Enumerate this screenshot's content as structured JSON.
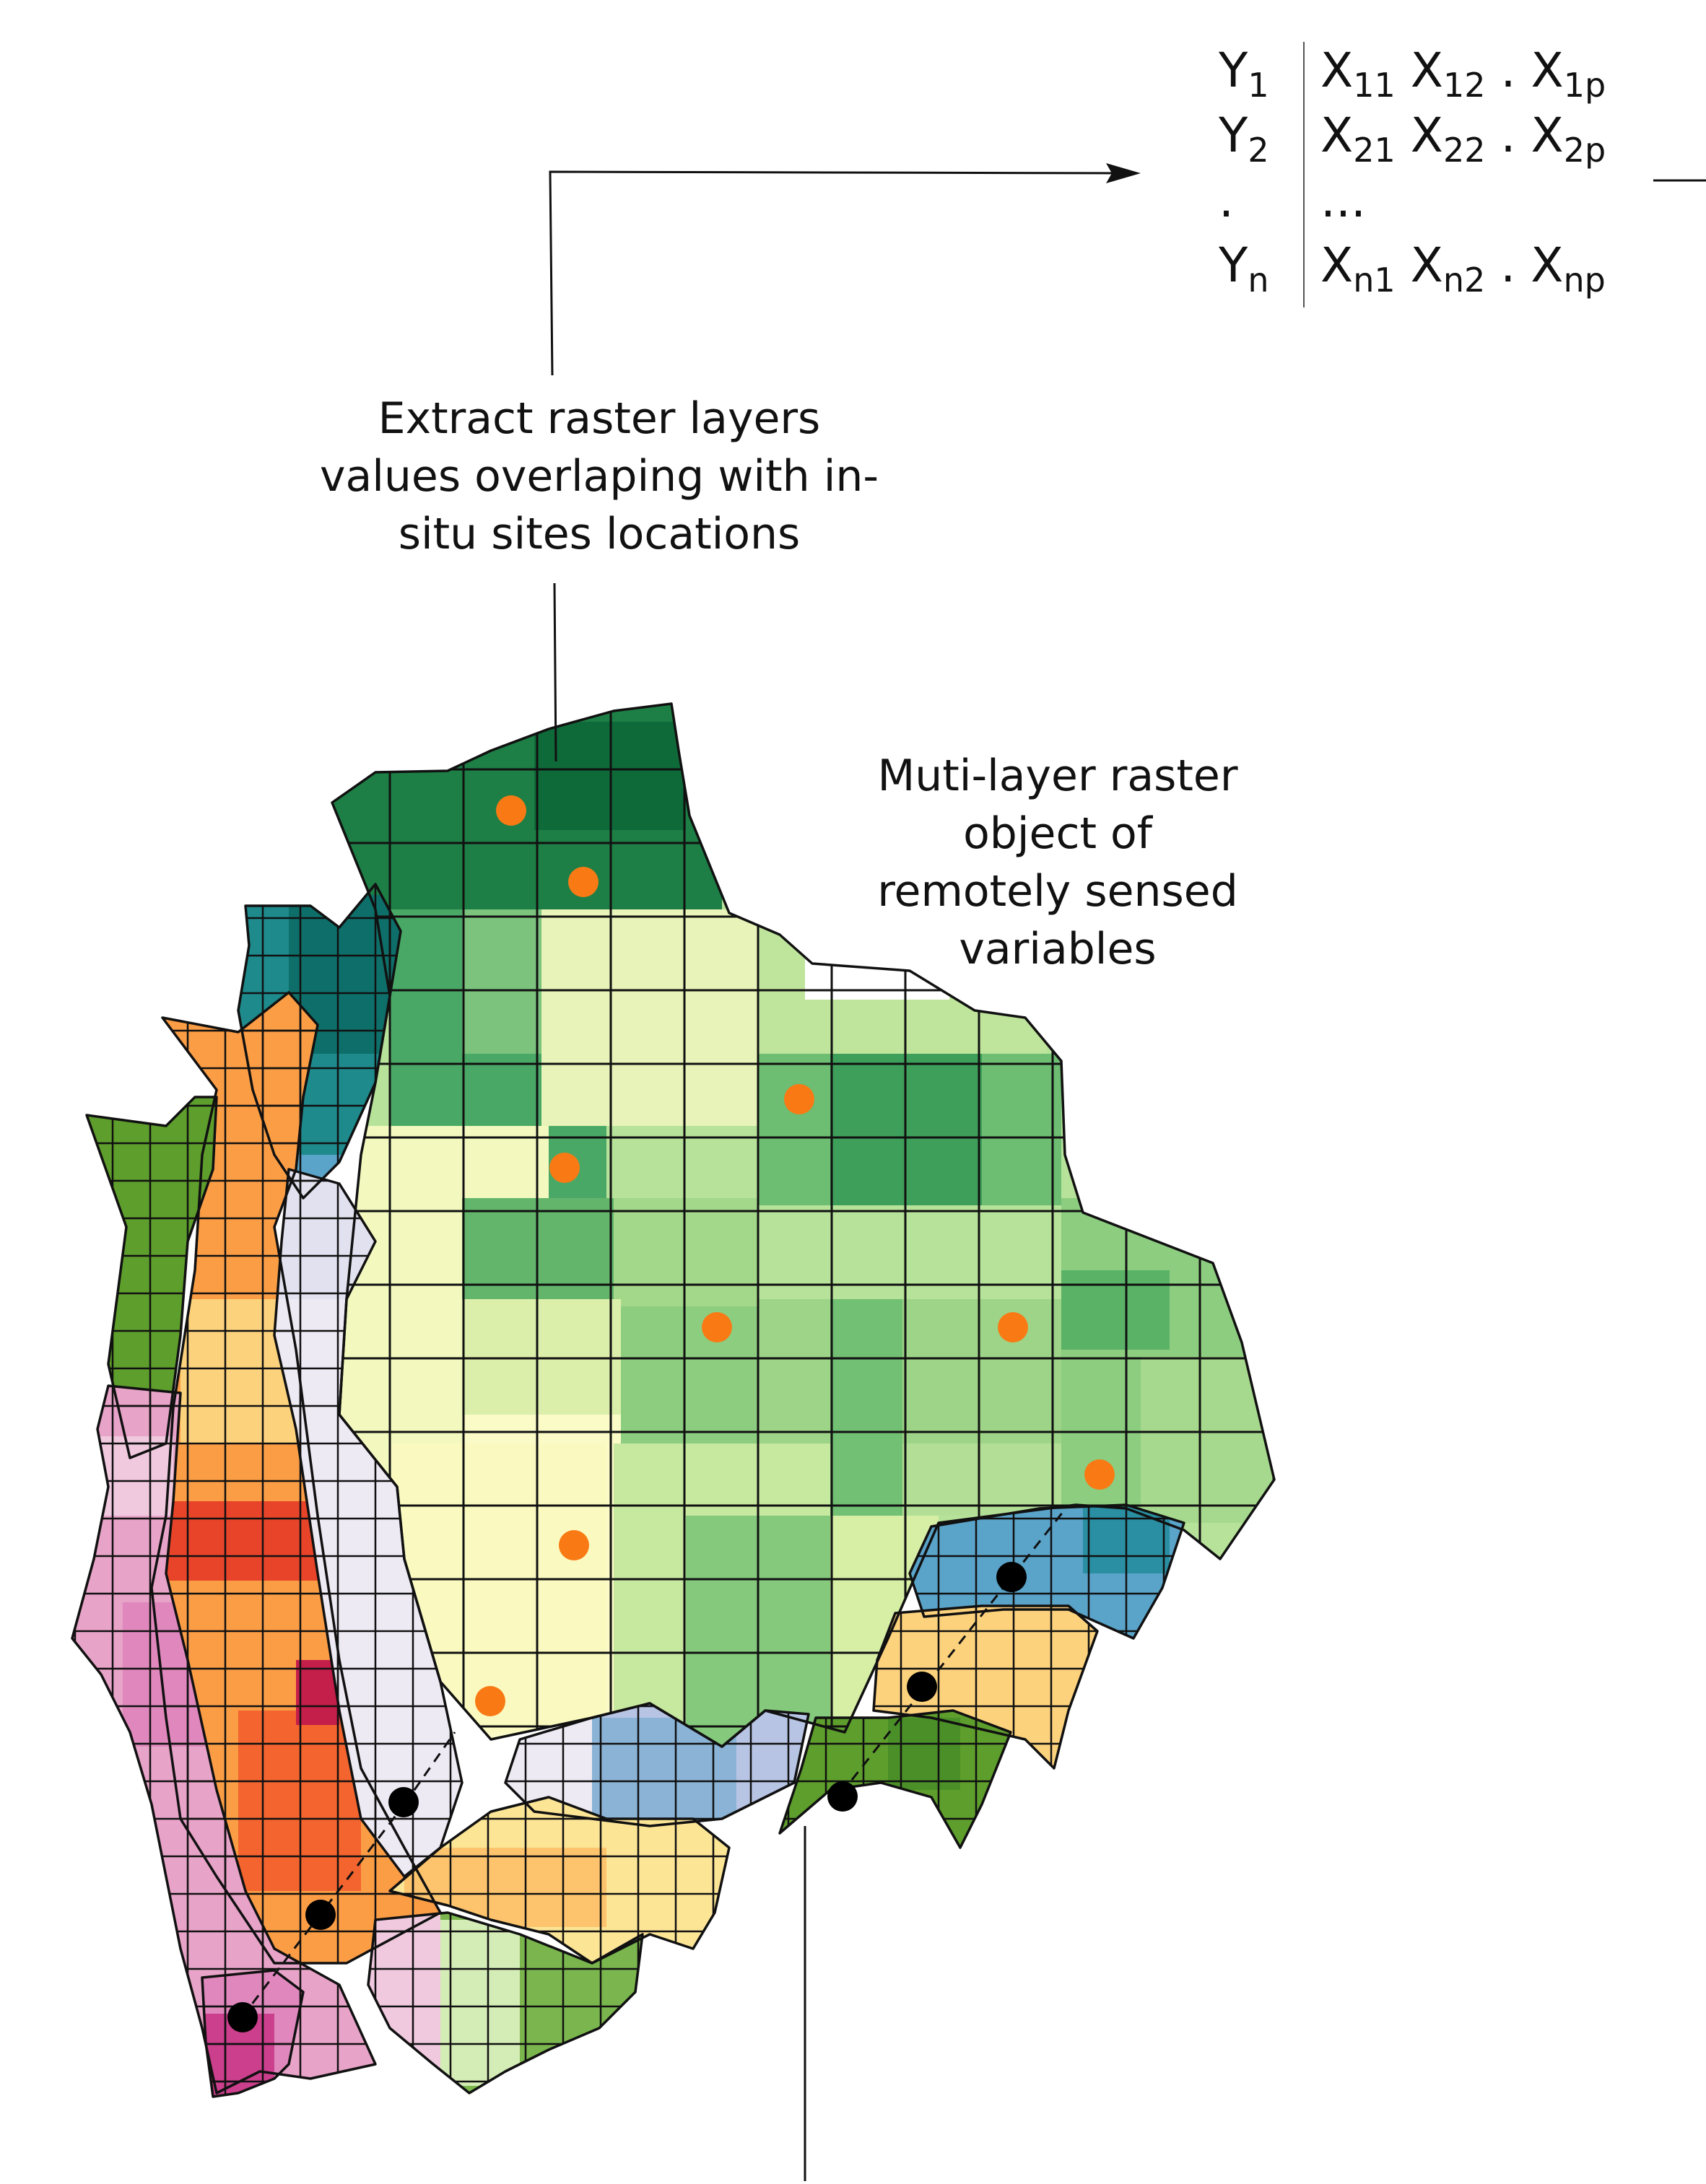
{
  "labels": {
    "extract": {
      "line1": "Extract raster layers",
      "line2": "values overlaping with in-",
      "line3": "situ sites locations"
    },
    "raster": {
      "line1": "Muti-layer raster",
      "line2": "object of",
      "line3": "remotely sensed",
      "line4": "variables"
    }
  },
  "matrix": {
    "rows": [
      {
        "y": "Y",
        "y_sub": "1",
        "x": [
          [
            "X",
            "11"
          ],
          [
            "X",
            "12"
          ],
          [
            ".",
            ""
          ],
          [
            "X",
            "1p"
          ]
        ]
      },
      {
        "y": "Y",
        "y_sub": "2",
        "x": [
          [
            "X",
            "21"
          ],
          [
            "X",
            "22"
          ],
          [
            ".",
            ""
          ],
          [
            "X",
            "2p"
          ]
        ]
      },
      {
        "y": ".",
        "y_sub": "",
        "text": "..."
      },
      {
        "y": "Y",
        "y_sub": "n",
        "x": [
          [
            "X",
            "n1"
          ],
          [
            "X",
            "n2"
          ],
          [
            ".",
            ""
          ],
          [
            "X",
            "np"
          ]
        ]
      }
    ]
  },
  "colors": {
    "site_marker": "#f97a14",
    "insitu_marker": "#000000",
    "grid_line": "#111111",
    "background": "#ffffff"
  }
}
